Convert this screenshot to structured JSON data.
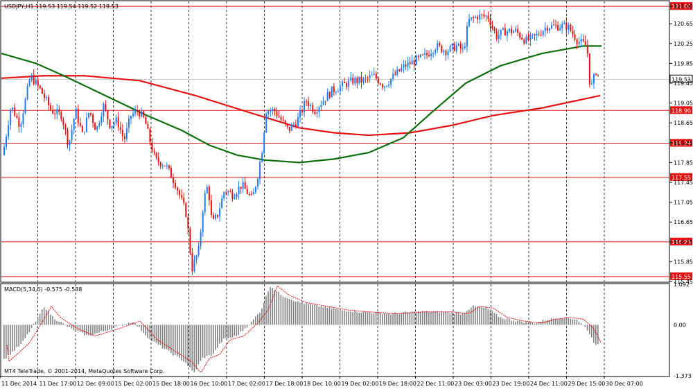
{
  "chart_data": [
    {
      "type": "candlestick",
      "title": "USDJPY,H1  119.53 119.54 119.52 119.53",
      "ylim": [
        115.45,
        121.1
      ],
      "y_ticks": [
        "121.00",
        "120.65",
        "120.25",
        "119.85",
        "119.45",
        "119.05",
        "118.65",
        "118.25",
        "117.85",
        "117.45",
        "117.05",
        "116.65",
        "116.25",
        "115.85",
        "115.45"
      ],
      "x_ticks": [
        "11 Dec 2014",
        "11 Dec 17:00",
        "12 Dec 09:00",
        "15 Dec 02:00",
        "15 Dec 18:00",
        "16 Dec 10:00",
        "17 Dec 02:00",
        "17 Dec 18:00",
        "18 Dec 10:00",
        "19 Dec 02:00",
        "19 Dec 18:00",
        "22 Dec 11:00",
        "23 Dec 03:00",
        "23 Dec 19:00",
        "24 Dec 11:00",
        "29 Dec 15:00",
        "30 Dec 07:00"
      ],
      "price_tag": "119.53",
      "levels": [
        "121.00",
        "118.90",
        "118.24",
        "117.55",
        "116.25",
        "115.55"
      ],
      "grid": true,
      "colors": {
        "bull": "#1e7bff",
        "bear": "#e81010",
        "ma_fast": "#0a6e0a",
        "ma_slow": "#e81010",
        "level": "#e81010"
      }
    },
    {
      "type": "bar",
      "title": "MACD(5,34,5) -0.575 -0.538",
      "ylim": [
        -1.373,
        1.092
      ],
      "y_ticks": [
        "1.092",
        "0.00",
        "-1.373"
      ],
      "colors": {
        "hist": "#808080",
        "signal": "#e81010"
      }
    }
  ],
  "footer": {
    "copyright": "MT4 TeleTrade, © 2001-2014, MetaQuotes Software Corp."
  }
}
